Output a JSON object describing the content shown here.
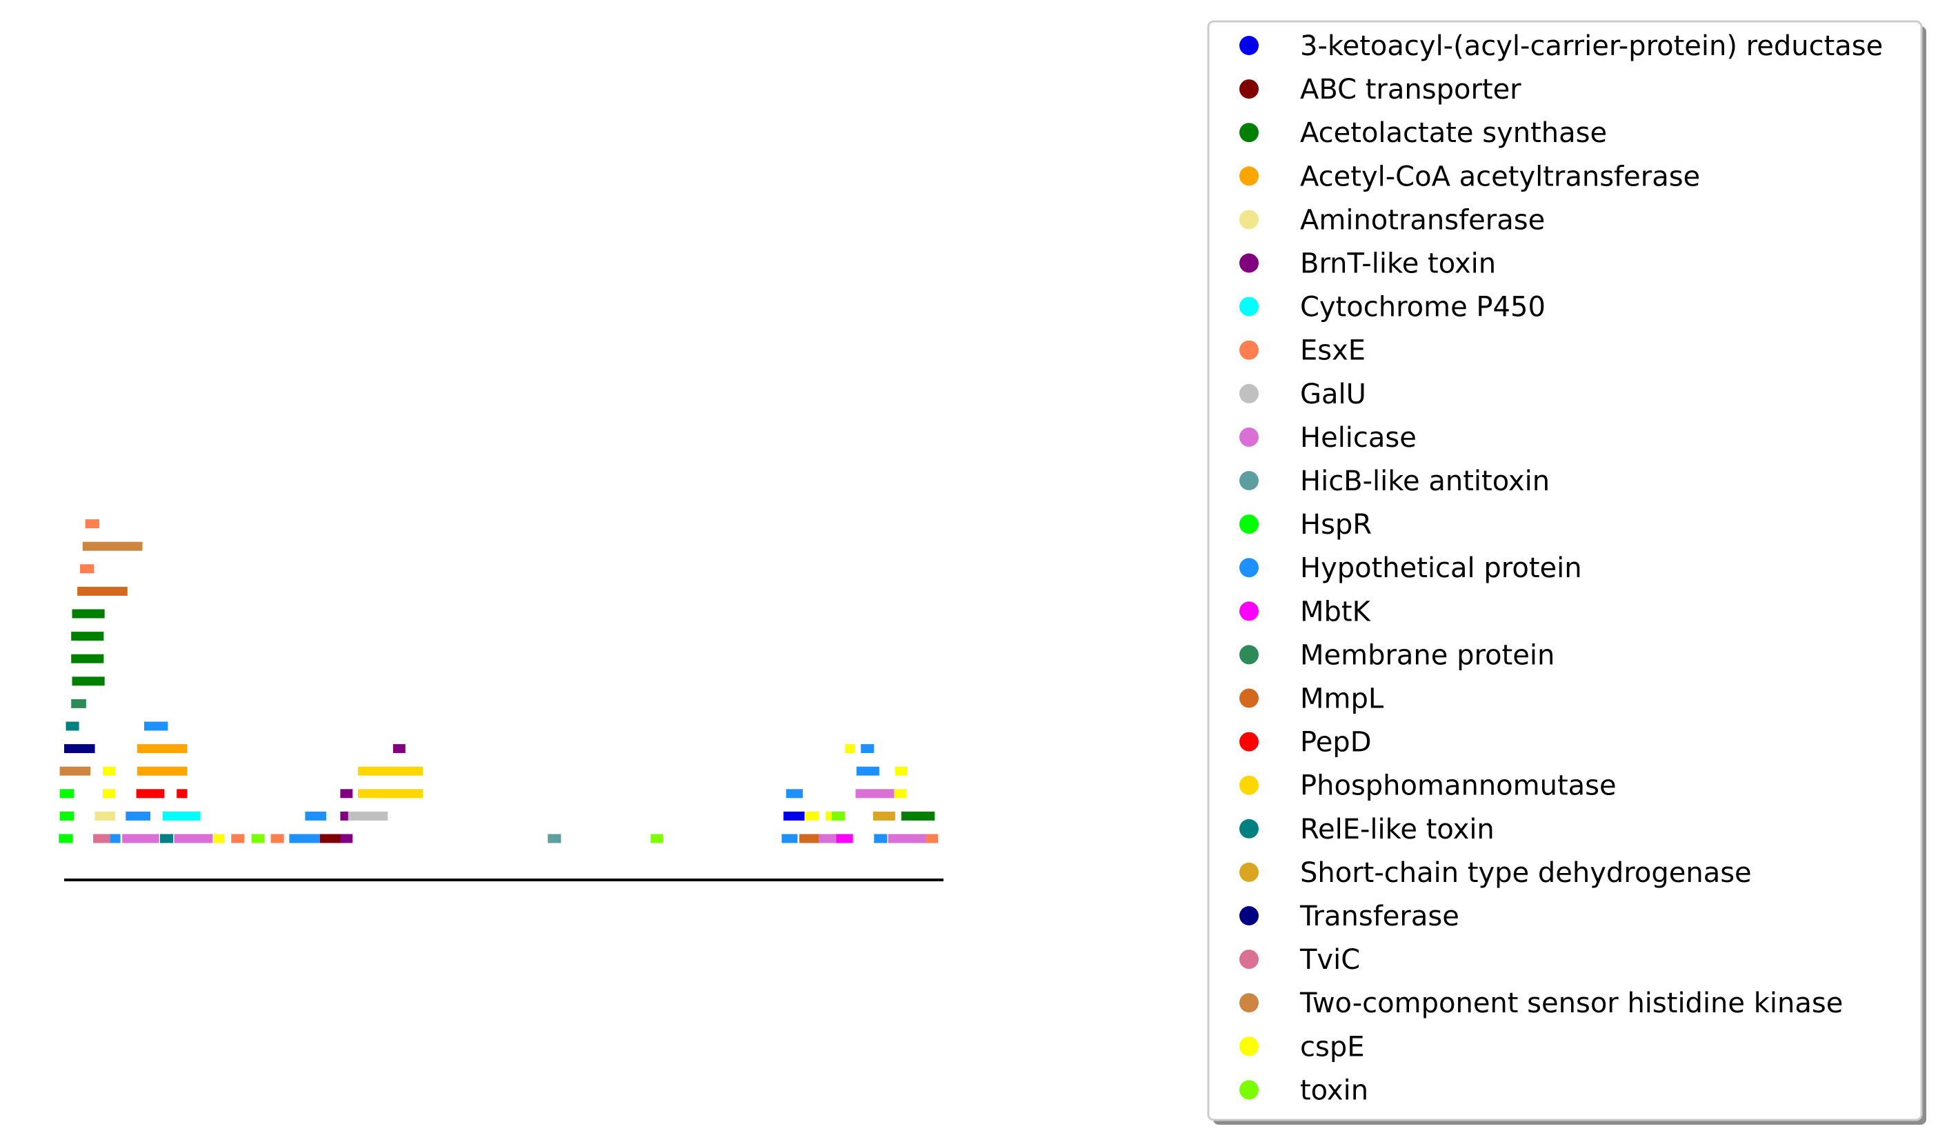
{
  "chart_data": {
    "type": "bar",
    "orientation": "horizontal-segments",
    "title": "",
    "xlabel": "",
    "ylabel": "",
    "x_axis": {
      "visible_line": true,
      "ticks": false,
      "range": [
        0,
        1000
      ]
    },
    "y_axis": {
      "visible": false,
      "range": [
        0,
        15
      ]
    },
    "grid": false,
    "legend_placement": "right",
    "series": [
      {
        "name": "3-ketoacyl-(acyl-carrier-protein) reductase",
        "color": "#0000ee",
        "segments": [
          {
            "x0": 818,
            "x1": 842,
            "track": 1
          }
        ]
      },
      {
        "name": "ABC transporter",
        "color": "#7f0000",
        "segments": [
          {
            "x0": 291,
            "x1": 322,
            "track": 0
          }
        ]
      },
      {
        "name": "Acetolactate synthase",
        "color": "#007f00",
        "segments": [
          {
            "x0": 9,
            "x1": 46,
            "track": 7
          },
          {
            "x0": 8,
            "x1": 45,
            "track": 8
          },
          {
            "x0": 8,
            "x1": 45,
            "track": 9
          },
          {
            "x0": 9,
            "x1": 46,
            "track": 10
          },
          {
            "x0": 952,
            "x1": 990,
            "track": 1
          }
        ]
      },
      {
        "name": "Acetyl-CoA acetyltransferase",
        "color": "#ffa500",
        "segments": [
          {
            "x0": 83,
            "x1": 140,
            "track": 3
          },
          {
            "x0": 83,
            "x1": 140,
            "track": 4
          }
        ]
      },
      {
        "name": "Aminotransferase",
        "color": "#f0e68c",
        "segments": [
          {
            "x0": 35,
            "x1": 58,
            "track": 1
          }
        ]
      },
      {
        "name": "BrnT-like toxin",
        "color": "#800080",
        "segments": [
          {
            "x0": 314,
            "x1": 328,
            "track": 0
          },
          {
            "x0": 314,
            "x1": 323,
            "track": 1
          },
          {
            "x0": 314,
            "x1": 328,
            "track": 2
          },
          {
            "x0": 374,
            "x1": 388,
            "track": 4
          }
        ]
      },
      {
        "name": "Cytochrome P450",
        "color": "#00ffff",
        "segments": [
          {
            "x0": 112,
            "x1": 155,
            "track": 1
          }
        ]
      },
      {
        "name": "EsxE",
        "color": "#ff7f50",
        "segments": [
          {
            "x0": 190,
            "x1": 205,
            "track": 0
          },
          {
            "x0": 235,
            "x1": 250,
            "track": 0
          },
          {
            "x0": 980,
            "x1": 994,
            "track": 0
          },
          {
            "x0": 18,
            "x1": 34,
            "track": 12
          },
          {
            "x0": 24,
            "x1": 40,
            "track": 14
          }
        ]
      },
      {
        "name": "GalU",
        "color": "#c0c0c0",
        "segments": [
          {
            "x0": 323,
            "x1": 368,
            "track": 1
          }
        ]
      },
      {
        "name": "Helicase",
        "color": "#da70d6",
        "segments": [
          {
            "x0": 66,
            "x1": 108,
            "track": 0
          },
          {
            "x0": 125,
            "x1": 169,
            "track": 0
          },
          {
            "x0": 858,
            "x1": 878,
            "track": 0
          },
          {
            "x0": 937,
            "x1": 980,
            "track": 0
          },
          {
            "x0": 900,
            "x1": 944,
            "track": 2
          }
        ]
      },
      {
        "name": "HicB-like antitoxin",
        "color": "#5f9ea0",
        "segments": [
          {
            "x0": 550,
            "x1": 565,
            "track": 0
          }
        ]
      },
      {
        "name": "HspR",
        "color": "#00ff00",
        "segments": [
          {
            "x0": -6,
            "x1": 10,
            "track": 0
          },
          {
            "x0": -5,
            "x1": 11,
            "track": 1
          },
          {
            "x0": -5,
            "x1": 11,
            "track": 2
          }
        ]
      },
      {
        "name": "Hypothetical protein",
        "color": "#1e90ff",
        "segments": [
          {
            "x0": 52,
            "x1": 64,
            "track": 0
          },
          {
            "x0": 256,
            "x1": 291,
            "track": 0
          },
          {
            "x0": 816,
            "x1": 834,
            "track": 0
          },
          {
            "x0": 921,
            "x1": 936,
            "track": 0
          },
          {
            "x0": 70,
            "x1": 98,
            "track": 1
          },
          {
            "x0": 274,
            "x1": 298,
            "track": 1
          },
          {
            "x0": 821,
            "x1": 840,
            "track": 2
          },
          {
            "x0": 901,
            "x1": 927,
            "track": 3
          },
          {
            "x0": 91,
            "x1": 118,
            "track": 5
          },
          {
            "x0": 906,
            "x1": 921,
            "track": 4
          }
        ]
      },
      {
        "name": "MbtK",
        "color": "#ff00ff",
        "segments": [
          {
            "x0": 878,
            "x1": 897,
            "track": 0
          }
        ]
      },
      {
        "name": "Membrane protein",
        "color": "#2e8b57",
        "segments": [
          {
            "x0": 8,
            "x1": 25,
            "track": 6
          }
        ]
      },
      {
        "name": "MmpL",
        "color": "#d2691e",
        "segments": [
          {
            "x0": 15,
            "x1": 72,
            "track": 11
          },
          {
            "x0": 836,
            "x1": 858,
            "track": 0
          }
        ]
      },
      {
        "name": "PepD",
        "color": "#ff0000",
        "segments": [
          {
            "x0": 82,
            "x1": 114,
            "track": 2
          },
          {
            "x0": 128,
            "x1": 140,
            "track": 2
          }
        ]
      },
      {
        "name": "Phosphomannomutase",
        "color": "#ffd700",
        "segments": [
          {
            "x0": 334,
            "x1": 408,
            "track": 2
          },
          {
            "x0": 334,
            "x1": 408,
            "track": 3
          }
        ]
      },
      {
        "name": "RelE-like toxin",
        "color": "#008080",
        "segments": [
          {
            "x0": 109,
            "x1": 124,
            "track": 0
          },
          {
            "x0": 2,
            "x1": 17,
            "track": 5
          }
        ]
      },
      {
        "name": "Short-chain type dehydrogenase",
        "color": "#daa520",
        "segments": [
          {
            "x0": 920,
            "x1": 945,
            "track": 1
          }
        ]
      },
      {
        "name": "Transferase",
        "color": "#000080",
        "segments": [
          {
            "x0": 0,
            "x1": 35,
            "track": 4
          }
        ]
      },
      {
        "name": "TviC",
        "color": "#db7093",
        "segments": [
          {
            "x0": 33,
            "x1": 52,
            "track": 0
          }
        ]
      },
      {
        "name": "Two-component sensor histidine kinase",
        "color": "#cd853f",
        "segments": [
          {
            "x0": -5,
            "x1": 30,
            "track": 3
          },
          {
            "x0": 21,
            "x1": 89,
            "track": 13
          }
        ]
      },
      {
        "name": "cspE",
        "color": "#ffff00",
        "segments": [
          {
            "x0": 170,
            "x1": 182,
            "track": 0
          },
          {
            "x0": 44,
            "x1": 58,
            "track": 2
          },
          {
            "x0": 44,
            "x1": 58,
            "track": 3
          },
          {
            "x0": 843,
            "x1": 858,
            "track": 1
          },
          {
            "x0": 866,
            "x1": 873,
            "track": 1
          },
          {
            "x0": 944,
            "x1": 958,
            "track": 2
          },
          {
            "x0": 945,
            "x1": 959,
            "track": 3
          },
          {
            "x0": 888,
            "x1": 899,
            "track": 4
          }
        ]
      },
      {
        "name": "toxin",
        "color": "#7cfc00",
        "segments": [
          {
            "x0": 213,
            "x1": 228,
            "track": 0
          },
          {
            "x0": 667,
            "x1": 681,
            "track": 0
          },
          {
            "x0": 873,
            "x1": 888,
            "track": 1
          }
        ]
      }
    ]
  }
}
